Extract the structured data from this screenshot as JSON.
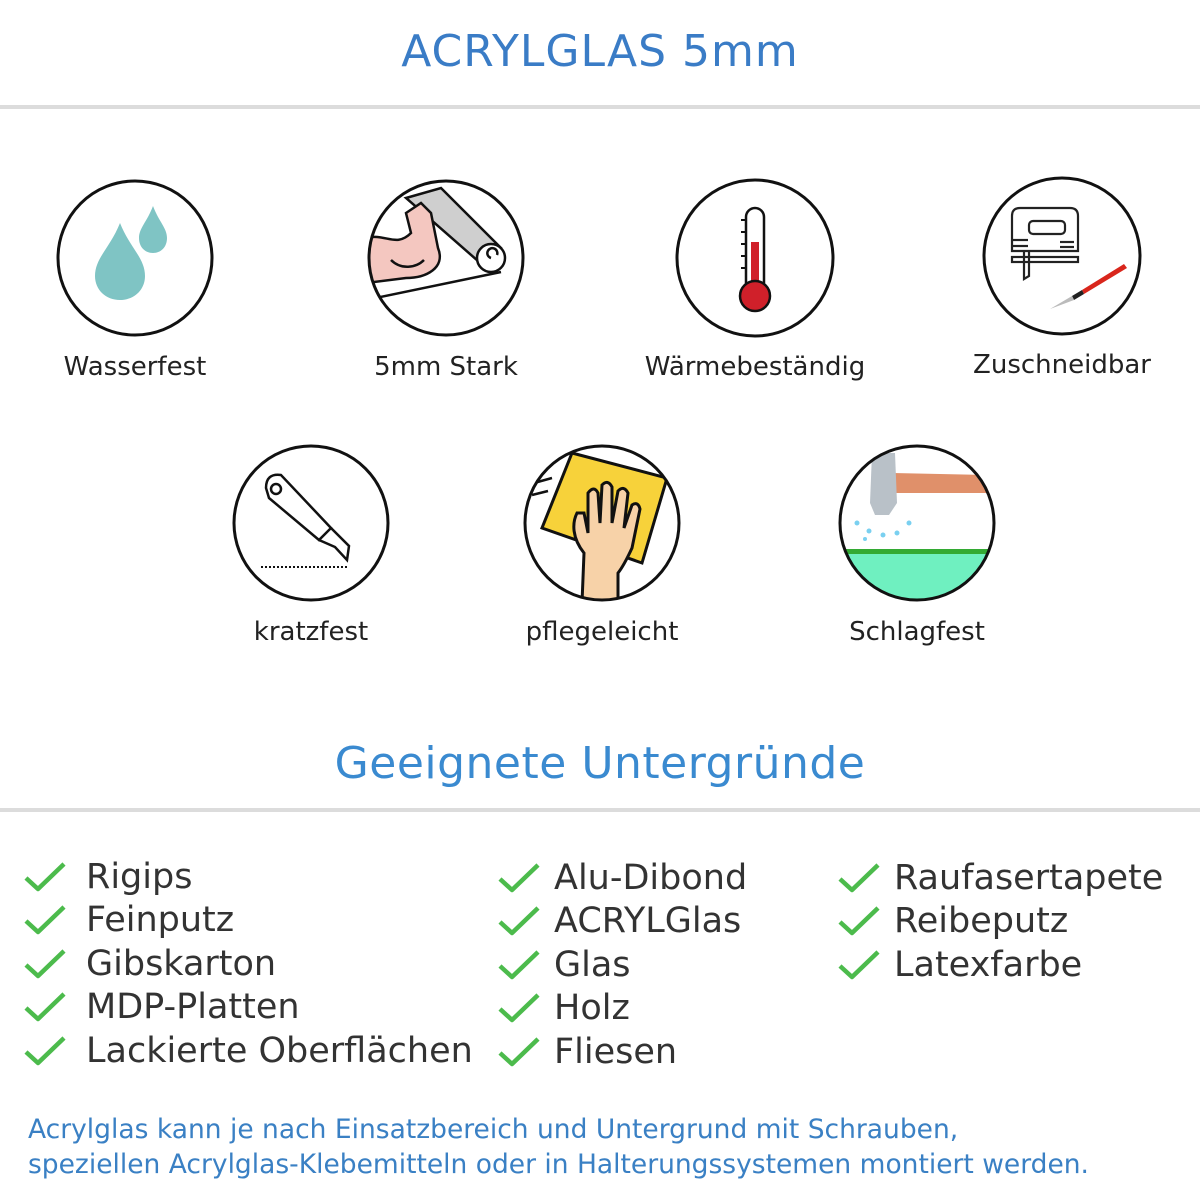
{
  "header": {
    "title": "ACRYLGLAS 5mm"
  },
  "features": [
    {
      "label": "Wasserfest",
      "icon": "water-drops-icon"
    },
    {
      "label": "5mm Stark",
      "icon": "strong-arm-icon"
    },
    {
      "label": "Wärmebeständig",
      "icon": "thermometer-icon"
    },
    {
      "label": "Zuschneidbar",
      "icon": "jigsaw-cutter-icon"
    },
    {
      "label": "kratzfest",
      "icon": "cutter-knife-icon"
    },
    {
      "label": "pflegeleicht",
      "icon": "cleaning-hand-icon"
    },
    {
      "label": "Schlagfest",
      "icon": "hammer-icon"
    }
  ],
  "surfaces": {
    "title": "Geeignete Untergründe",
    "check_color": "#4cbb4c",
    "columns": [
      [
        "Rigips",
        "Feinputz",
        "Gibskarton",
        "MDP-Platten",
        "Lackierte Oberflächen"
      ],
      [
        "Alu-Dibond",
        "ACRYLGlas",
        "Glas",
        "Holz",
        "Fliesen"
      ],
      [
        "Raufasertapete",
        "Reibeputz",
        "Latexfarbe"
      ]
    ]
  },
  "footer": {
    "line1": "Acrylglas kann je nach Einsatzbereich und Untergrund mit Schrauben,",
    "line2": "speziellen Acrylglas-Klebemitteln oder in Halterungssystemen montiert werden."
  }
}
